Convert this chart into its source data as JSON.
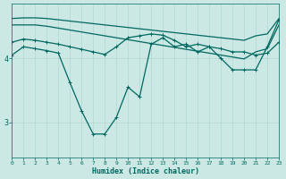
{
  "xlabel": "Humidex (Indice chaleur)",
  "ylabel": "",
  "background_color": "#cce8e4",
  "line_color": "#006860",
  "grid_color": "#b0d8d0",
  "x_ticks": [
    0,
    1,
    2,
    3,
    4,
    5,
    6,
    7,
    8,
    9,
    10,
    11,
    12,
    13,
    14,
    15,
    16,
    17,
    18,
    19,
    20,
    21,
    22,
    23
  ],
  "y_ticks": [
    3,
    4
  ],
  "ylim": [
    2.45,
    4.85
  ],
  "xlim": [
    0,
    23
  ],
  "lines": [
    {
      "x": [
        0,
        1,
        2,
        3,
        4,
        5,
        6,
        7,
        8,
        9,
        10,
        11,
        12,
        13,
        14,
        15,
        16,
        17,
        18,
        19,
        20,
        21,
        22,
        23
      ],
      "y": [
        4.62,
        4.63,
        4.63,
        4.62,
        4.6,
        4.58,
        4.56,
        4.54,
        4.52,
        4.5,
        4.48,
        4.46,
        4.44,
        4.42,
        4.4,
        4.38,
        4.36,
        4.34,
        4.32,
        4.3,
        4.28,
        4.35,
        4.38,
        4.62
      ],
      "marker": null,
      "lw": 0.9
    },
    {
      "x": [
        0,
        1,
        2,
        3,
        4,
        5,
        6,
        7,
        8,
        9,
        10,
        11,
        12,
        13,
        14,
        15,
        16,
        17,
        18,
        19,
        20,
        21,
        22,
        23
      ],
      "y": [
        4.52,
        4.52,
        4.52,
        4.5,
        4.47,
        4.44,
        4.41,
        4.38,
        4.35,
        4.32,
        4.29,
        4.26,
        4.23,
        4.2,
        4.17,
        4.14,
        4.11,
        4.08,
        4.05,
        4.02,
        3.99,
        4.1,
        4.15,
        4.52
      ],
      "marker": null,
      "lw": 0.9
    },
    {
      "x": [
        0,
        1,
        2,
        3,
        4,
        5,
        6,
        7,
        8,
        9,
        10,
        11,
        12,
        13,
        14,
        15,
        16,
        17,
        18,
        19,
        20,
        21,
        22,
        23
      ],
      "y": [
        4.25,
        4.3,
        4.28,
        4.25,
        4.22,
        4.18,
        4.14,
        4.1,
        4.06,
        4.18,
        4.32,
        4.35,
        4.38,
        4.36,
        4.28,
        4.18,
        4.22,
        4.18,
        4.15,
        4.1,
        4.1,
        4.05,
        4.08,
        4.25
      ],
      "marker": "+",
      "lw": 0.9
    },
    {
      "x": [
        0,
        1,
        2,
        3,
        4,
        5,
        6,
        7,
        8,
        9,
        10,
        11,
        12,
        13,
        14,
        15,
        16,
        17,
        18,
        19,
        20,
        21,
        22,
        23
      ],
      "y": [
        4.05,
        4.18,
        4.15,
        4.12,
        4.08,
        3.62,
        3.18,
        2.82,
        2.82,
        3.08,
        3.55,
        3.4,
        4.22,
        4.32,
        4.18,
        4.22,
        4.1,
        4.18,
        4.0,
        3.82,
        3.82,
        3.82,
        4.18,
        4.6
      ],
      "marker": "+",
      "lw": 0.9
    }
  ]
}
